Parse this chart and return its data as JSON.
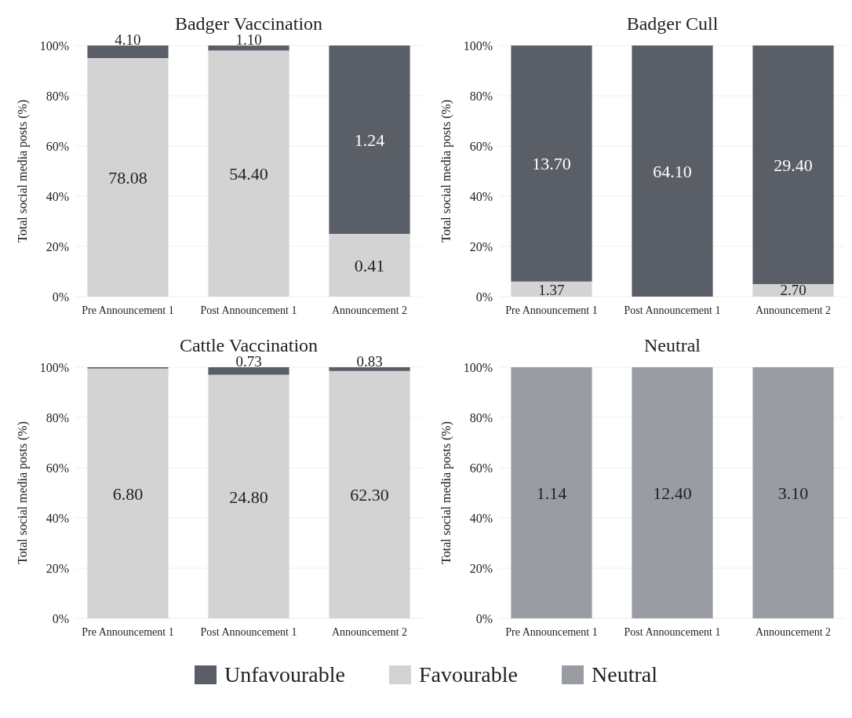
{
  "chart_data": [
    {
      "type": "bar",
      "title": "Badger Vaccination",
      "ylabel": "Total social media posts (%)",
      "categories": [
        "Pre Announcement 1",
        "Post Announcement 1",
        "Announcement 2"
      ],
      "stacked": true,
      "ylim": [
        0,
        100
      ],
      "yticks": [
        {
          "value": 0,
          "label": "0%"
        },
        {
          "value": 20,
          "label": "20%"
        },
        {
          "value": 40,
          "label": "40%"
        },
        {
          "value": 60,
          "label": "60%"
        },
        {
          "value": 80,
          "label": "80%"
        },
        {
          "value": 100,
          "label": "100%"
        }
      ],
      "grid": "y",
      "legend": "bottom",
      "series": [
        {
          "name": "Favourable",
          "color": "#d3d3d3",
          "values": [
            95,
            98,
            25
          ]
        },
        {
          "name": "Unfavourable",
          "color": "#5a5e66",
          "values": [
            5,
            2,
            75
          ]
        }
      ],
      "annotations": [
        "78.08",
        "54.40",
        "0.41",
        "1.24",
        {
          "text": "4.10",
          "x": "Pre Announcement 1",
          "y": 100
        },
        {
          "text": "1.10",
          "x": "Post Announcement 1",
          "y": 100
        }
      ]
    },
    {
      "type": "bar",
      "title": "Badger Cull",
      "ylabel": "Total social media posts (%)",
      "categories": [
        "Pre Announcement 1",
        "Post Announcement 1",
        "Announcement 2"
      ],
      "stacked": true,
      "ylim": [
        0,
        100
      ],
      "yticks": [
        {
          "value": 0,
          "label": "0%"
        },
        {
          "value": 20,
          "label": "20%"
        },
        {
          "value": 40,
          "label": "40%"
        },
        {
          "value": 60,
          "label": "60%"
        },
        {
          "value": 80,
          "label": "80%"
        },
        {
          "value": 100,
          "label": "100%"
        }
      ],
      "grid": "y",
      "legend": "bottom",
      "series": [
        {
          "name": "Favourable",
          "color": "#d3d3d3",
          "values": [
            6,
            0,
            5
          ]
        },
        {
          "name": "Unfavourable",
          "color": "#5a5e66",
          "values": [
            94,
            100,
            95
          ]
        }
      ],
      "annotations": [
        "13.70",
        "64.10",
        "29.40",
        {
          "text": "1.37",
          "x": "Pre Announcement 1",
          "y": 6
        },
        {
          "text": "2.70",
          "x": "Announcement 2",
          "y": 5
        }
      ]
    },
    {
      "type": "bar",
      "title": "Cattle Vaccination",
      "ylabel": "Total social media posts (%)",
      "categories": [
        "Pre Announcement 1",
        "Post Announcement 1",
        "Announcement 2"
      ],
      "stacked": true,
      "ylim": [
        0,
        100
      ],
      "yticks": [
        {
          "value": 0,
          "label": "0%"
        },
        {
          "value": 20,
          "label": "20%"
        },
        {
          "value": 40,
          "label": "40%"
        },
        {
          "value": 60,
          "label": "60%"
        },
        {
          "value": 80,
          "label": "80%"
        },
        {
          "value": 100,
          "label": "100%"
        }
      ],
      "grid": "y",
      "legend": "bottom",
      "series": [
        {
          "name": "Favourable",
          "color": "#d3d3d3",
          "values": [
            99.5,
            97,
            98.5
          ]
        },
        {
          "name": "Unfavourable",
          "color": "#5a5e66",
          "values": [
            0.5,
            3,
            1.5
          ]
        }
      ],
      "annotations": [
        "6.80",
        "24.80",
        "62.30",
        {
          "text": "0.73",
          "x": "Post Announcement 1",
          "y": 100
        },
        {
          "text": "0.83",
          "x": "Announcement 2",
          "y": 100
        }
      ]
    },
    {
      "type": "bar",
      "title": "Neutral",
      "ylabel": "Total social media posts (%)",
      "categories": [
        "Pre Announcement 1",
        "Post Announcement 1",
        "Announcement 2"
      ],
      "stacked": true,
      "ylim": [
        0,
        100
      ],
      "yticks": [
        {
          "value": 0,
          "label": "0%"
        },
        {
          "value": 20,
          "label": "20%"
        },
        {
          "value": 40,
          "label": "40%"
        },
        {
          "value": 60,
          "label": "60%"
        },
        {
          "value": 80,
          "label": "80%"
        },
        {
          "value": 100,
          "label": "100%"
        }
      ],
      "grid": "y",
      "legend": "bottom",
      "series": [
        {
          "name": "Neutral",
          "color": "#999da3",
          "values": [
            100,
            100,
            100
          ]
        }
      ],
      "annotations": [
        "1.14",
        "12.40",
        "3.10"
      ]
    }
  ]
}
